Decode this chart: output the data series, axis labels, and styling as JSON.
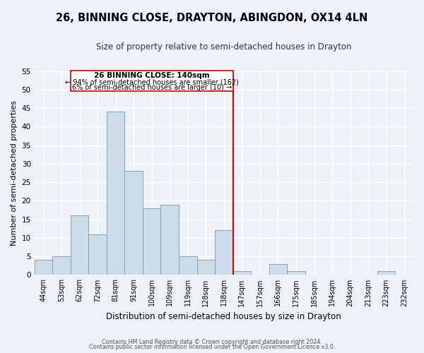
{
  "title": "26, BINNING CLOSE, DRAYTON, ABINGDON, OX14 4LN",
  "subtitle": "Size of property relative to semi-detached houses in Drayton",
  "xlabel": "Distribution of semi-detached houses by size in Drayton",
  "ylabel": "Number of semi-detached properties",
  "footer_line1": "Contains HM Land Registry data © Crown copyright and database right 2024.",
  "footer_line2": "Contains public sector information licensed under the Open Government Licence v3.0.",
  "bin_labels": [
    "44sqm",
    "53sqm",
    "62sqm",
    "72sqm",
    "81sqm",
    "91sqm",
    "100sqm",
    "109sqm",
    "119sqm",
    "128sqm",
    "138sqm",
    "147sqm",
    "157sqm",
    "166sqm",
    "175sqm",
    "185sqm",
    "194sqm",
    "204sqm",
    "213sqm",
    "223sqm",
    "232sqm"
  ],
  "bar_heights": [
    4,
    5,
    16,
    11,
    44,
    28,
    18,
    19,
    5,
    4,
    12,
    1,
    0,
    3,
    1,
    0,
    0,
    0,
    0,
    1,
    0
  ],
  "bar_color": "#ccdce8",
  "bar_edge_color": "#7799bb",
  "vline_color": "#cc0000",
  "vline_label": "26 BINNING CLOSE: 140sqm",
  "annotation_smaller": "← 94% of semi-detached houses are smaller (162)",
  "annotation_larger": "6% of semi-detached houses are larger (10) →",
  "box_color": "#ffffff",
  "box_edge_color": "#cc0000",
  "ylim": [
    0,
    55
  ],
  "yticks": [
    0,
    5,
    10,
    15,
    20,
    25,
    30,
    35,
    40,
    45,
    50,
    55
  ],
  "background_color": "#eef2f7",
  "grid_color": "#ffffff",
  "vline_bin_index": 10
}
